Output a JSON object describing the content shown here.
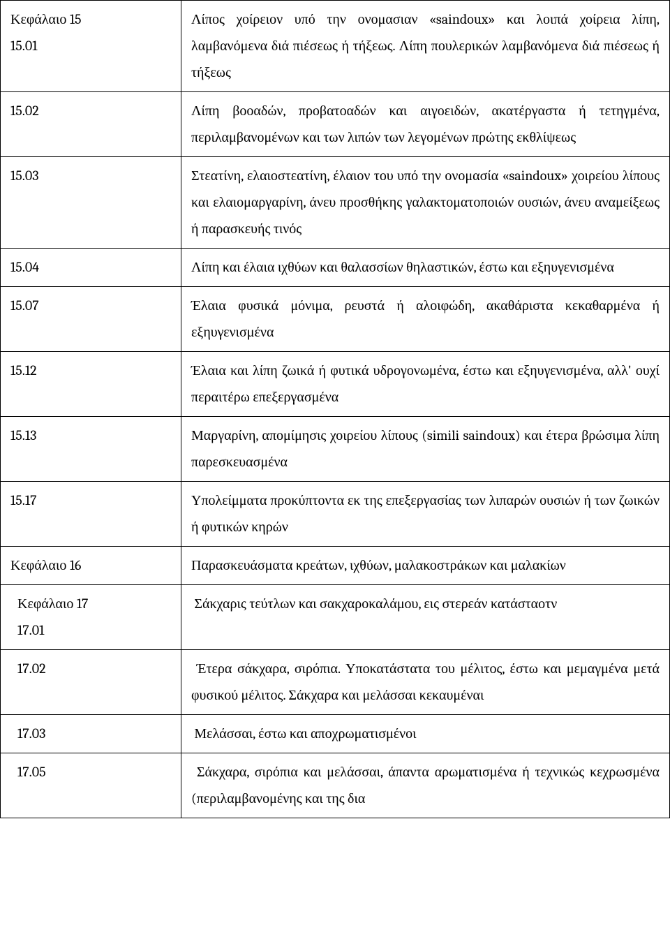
{
  "rows": [
    {
      "left_lines": [
        "Κεφάλαιο 15",
        "15.01"
      ],
      "right": "Λίπος χοίρειον υπό την ονομασιαν «saindoux» και λοιπά χοίρεια λίπη, λαμβανόμενα διά πιέσεως ή τήξεως. Λίπη πουλερικών λαμβανόμενα διά πιέσεως ή τήξεως"
    },
    {
      "left_lines": [
        "15.02"
      ],
      "right": "Λίπη βοοαδών, προβατοαδών και αιγοειδών, ακατέργαστα ή τετηγμένα, περιλαμβανομένων και των λιπών των λεγομένων πρώτης εκθλίψεως"
    },
    {
      "left_lines": [
        "15.03"
      ],
      "right": "Στεατίνη, ελαιοστεατίνη, έλαιον του υπό την ονομασία «saindoux» χοιρείου λίπους και ελαιομαργαρίνη, άνευ προσθήκης γαλακτοματοποιών ουσιών, άνευ αναμείξεως ή παρασκευής τινός"
    },
    {
      "left_lines": [
        "15.04"
      ],
      "right": "Λίπη και έλαια ιχθύων και θαλασσίων θηλαστικών, έστω και εξηυγενισμένα"
    },
    {
      "left_lines": [
        "15.07"
      ],
      "right": "Έλαια φυσικά μόνιμα, ρευστά ή αλοιφώδη, ακαθάριστα κεκαθαρμένα ή εξηυγενισμένα"
    },
    {
      "left_lines": [
        "15.12"
      ],
      "right": "Έλαια και λίπη ζωικά ή φυτικά υδρογονωμένα, έστω και εξηυγενισμένα, αλλ' ουχί περαιτέρω επεξεργασμένα"
    },
    {
      "left_lines": [
        "15.13"
      ],
      "right": "Μαργαρίνη, απομίμησις χοιρείου λίπους (simili saindoux) και έτερα βρώσιμα λίπη παρεσκευασμένα"
    },
    {
      "left_lines": [
        "15.17"
      ],
      "right": "Υπολείμματα προκύπτοντα εκ της επεξεργασίας των λιπαρών ουσιών ή των ζωικών ή φυτικών κηρών"
    },
    {
      "left_lines": [
        "Κεφάλαιο 16"
      ],
      "right": "Παρασκευάσματα κρεάτων, ιχθύων, μαλακοστράκων και μαλακίων"
    },
    {
      "left_lines": [
        "Κεφάλαιο 17",
        "17.01"
      ],
      "left_indent": true,
      "right": "Σάκχαρις τεύτλων και σακχαροκαλάμου, εις στερεάν κατάσταοτν",
      "right_indent": true
    },
    {
      "left_lines": [
        "17.02"
      ],
      "left_indent": true,
      "right": "Έτερα σάκχαρα, σιρόπια. Υποκατάστατα του μέλιτος, έστω και μεμαγμένα μετά φυσικού μέλιτος. Σάκχαρα και μελάσσαι κεκαυμέναι",
      "right_indent": true
    },
    {
      "left_lines": [
        "17.03"
      ],
      "left_indent": true,
      "right": "Μελάσσαι, έστω και αποχρωματισμένοι",
      "right_indent": true
    },
    {
      "left_lines": [
        "17.05"
      ],
      "left_indent": true,
      "right": "Σάκχαρα, σιρόπια και μελάσσαι, άπαντα αρωματισμένα ή τεχνικώς κεχρωσμένα (περιλαμβανομένης και της δια",
      "right_indent": true
    }
  ]
}
